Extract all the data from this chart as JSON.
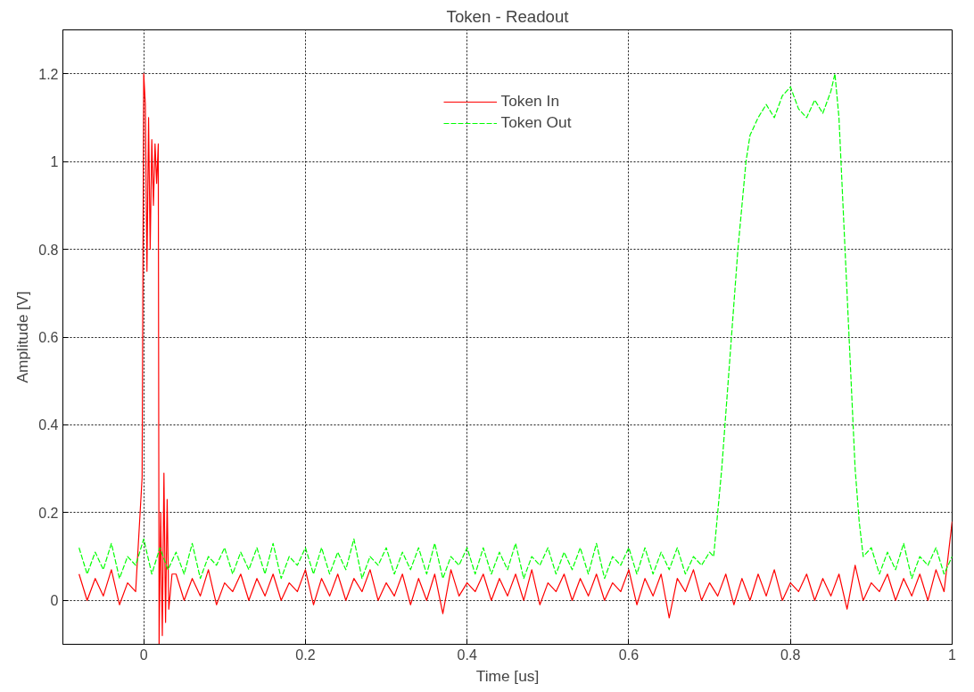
{
  "chart_data": {
    "type": "line",
    "title": "Token - Readout",
    "xlabel": "Time [us]",
    "ylabel": "Amplitude [V]",
    "xlim": [
      -0.1,
      1.0
    ],
    "xticks": [
      0,
      0.2,
      0.4,
      0.6,
      0.8,
      1
    ],
    "ylim": [
      -0.1,
      1.3
    ],
    "yticks": [
      0,
      0.2,
      0.4,
      0.6,
      0.8,
      1,
      1.2
    ],
    "grid": true,
    "legend": "top",
    "series": [
      {
        "name": "Token In",
        "color": "#ff0000",
        "line_style": "solid",
        "x": [
          -0.08,
          -0.07,
          -0.06,
          -0.05,
          -0.04,
          -0.03,
          -0.02,
          -0.01,
          -0.002,
          0,
          0.002,
          0.004,
          0.006,
          0.008,
          0.01,
          0.012,
          0.014,
          0.016,
          0.018,
          0.019,
          0.021,
          0.023,
          0.025,
          0.027,
          0.029,
          0.031,
          0.035,
          0.04,
          0.05,
          0.06,
          0.07,
          0.08,
          0.09,
          0.1,
          0.11,
          0.12,
          0.13,
          0.14,
          0.15,
          0.16,
          0.17,
          0.18,
          0.19,
          0.2,
          0.21,
          0.22,
          0.23,
          0.24,
          0.25,
          0.26,
          0.27,
          0.28,
          0.29,
          0.3,
          0.31,
          0.32,
          0.33,
          0.34,
          0.35,
          0.36,
          0.37,
          0.38,
          0.39,
          0.4,
          0.41,
          0.42,
          0.43,
          0.44,
          0.45,
          0.46,
          0.47,
          0.48,
          0.49,
          0.5,
          0.51,
          0.52,
          0.53,
          0.54,
          0.55,
          0.56,
          0.57,
          0.58,
          0.59,
          0.6,
          0.61,
          0.62,
          0.63,
          0.64,
          0.65,
          0.66,
          0.67,
          0.68,
          0.69,
          0.7,
          0.71,
          0.72,
          0.73,
          0.74,
          0.75,
          0.76,
          0.77,
          0.78,
          0.79,
          0.8,
          0.81,
          0.82,
          0.83,
          0.84,
          0.85,
          0.86,
          0.87,
          0.88,
          0.89,
          0.9,
          0.91,
          0.92,
          0.93,
          0.94,
          0.95,
          0.96,
          0.97,
          0.98,
          0.99,
          1.0
        ],
        "values": [
          0.06,
          0.0,
          0.05,
          0.01,
          0.07,
          -0.01,
          0.04,
          0.02,
          0.28,
          1.2,
          1.13,
          0.75,
          1.1,
          0.8,
          1.05,
          0.9,
          1.04,
          0.95,
          1.04,
          -0.1,
          0.2,
          -0.08,
          0.29,
          -0.05,
          0.23,
          -0.02,
          0.06,
          0.06,
          0.0,
          0.05,
          0.01,
          0.07,
          -0.01,
          0.04,
          0.02,
          0.06,
          0.0,
          0.05,
          0.01,
          0.06,
          0.0,
          0.04,
          0.02,
          0.07,
          -0.01,
          0.05,
          0.01,
          0.06,
          0.0,
          0.05,
          0.02,
          0.07,
          0.0,
          0.04,
          0.01,
          0.06,
          -0.01,
          0.05,
          0.0,
          0.06,
          -0.03,
          0.07,
          0.01,
          0.04,
          0.02,
          0.06,
          0.0,
          0.05,
          0.01,
          0.06,
          0.0,
          0.07,
          -0.01,
          0.04,
          0.02,
          0.06,
          0.0,
          0.05,
          0.01,
          0.06,
          0.0,
          0.04,
          0.02,
          0.07,
          -0.01,
          0.05,
          0.01,
          0.06,
          -0.04,
          0.05,
          0.02,
          0.07,
          0.0,
          0.04,
          0.01,
          0.06,
          -0.01,
          0.05,
          0.0,
          0.06,
          0.01,
          0.07,
          0.0,
          0.04,
          0.02,
          0.06,
          0.0,
          0.05,
          0.01,
          0.06,
          -0.02,
          0.08,
          0.0,
          0.04,
          0.02,
          0.06,
          0.0,
          0.05,
          0.01,
          0.06,
          0.0,
          0.07,
          0.02,
          0.18
        ]
      },
      {
        "name": "Token Out",
        "color": "#00ff00",
        "line_style": "dashed",
        "x": [
          -0.08,
          -0.07,
          -0.06,
          -0.05,
          -0.04,
          -0.03,
          -0.02,
          -0.01,
          0.0,
          0.01,
          0.02,
          0.03,
          0.04,
          0.05,
          0.06,
          0.07,
          0.08,
          0.09,
          0.1,
          0.11,
          0.12,
          0.13,
          0.14,
          0.15,
          0.16,
          0.17,
          0.18,
          0.19,
          0.2,
          0.21,
          0.22,
          0.23,
          0.24,
          0.25,
          0.26,
          0.27,
          0.28,
          0.29,
          0.3,
          0.31,
          0.32,
          0.33,
          0.34,
          0.35,
          0.36,
          0.37,
          0.38,
          0.39,
          0.4,
          0.41,
          0.42,
          0.43,
          0.44,
          0.45,
          0.46,
          0.47,
          0.48,
          0.49,
          0.5,
          0.51,
          0.52,
          0.53,
          0.54,
          0.55,
          0.56,
          0.57,
          0.58,
          0.59,
          0.6,
          0.61,
          0.62,
          0.63,
          0.64,
          0.65,
          0.66,
          0.67,
          0.68,
          0.69,
          0.7,
          0.705,
          0.715,
          0.725,
          0.735,
          0.74,
          0.745,
          0.75,
          0.76,
          0.77,
          0.78,
          0.79,
          0.8,
          0.81,
          0.82,
          0.83,
          0.84,
          0.85,
          0.855,
          0.86,
          0.865,
          0.87,
          0.875,
          0.88,
          0.885,
          0.89,
          0.9,
          0.91,
          0.92,
          0.93,
          0.94,
          0.95,
          0.96,
          0.97,
          0.98,
          0.99,
          1.0
        ],
        "values": [
          0.12,
          0.06,
          0.11,
          0.07,
          0.13,
          0.05,
          0.1,
          0.08,
          0.14,
          0.06,
          0.12,
          0.07,
          0.11,
          0.06,
          0.13,
          0.05,
          0.1,
          0.08,
          0.12,
          0.06,
          0.11,
          0.07,
          0.12,
          0.06,
          0.13,
          0.05,
          0.1,
          0.08,
          0.12,
          0.06,
          0.12,
          0.06,
          0.11,
          0.07,
          0.14,
          0.05,
          0.1,
          0.08,
          0.12,
          0.06,
          0.11,
          0.07,
          0.12,
          0.06,
          0.13,
          0.05,
          0.1,
          0.08,
          0.12,
          0.06,
          0.12,
          0.06,
          0.11,
          0.07,
          0.13,
          0.05,
          0.1,
          0.08,
          0.12,
          0.06,
          0.11,
          0.07,
          0.12,
          0.06,
          0.13,
          0.05,
          0.1,
          0.08,
          0.12,
          0.06,
          0.12,
          0.06,
          0.11,
          0.07,
          0.12,
          0.06,
          0.1,
          0.08,
          0.11,
          0.1,
          0.3,
          0.55,
          0.8,
          0.9,
          1.0,
          1.06,
          1.1,
          1.13,
          1.1,
          1.15,
          1.17,
          1.12,
          1.1,
          1.14,
          1.11,
          1.16,
          1.2,
          1.1,
          0.9,
          0.7,
          0.5,
          0.3,
          0.18,
          0.1,
          0.12,
          0.06,
          0.11,
          0.07,
          0.13,
          0.05,
          0.1,
          0.08,
          0.12,
          0.06,
          0.1
        ]
      }
    ]
  }
}
